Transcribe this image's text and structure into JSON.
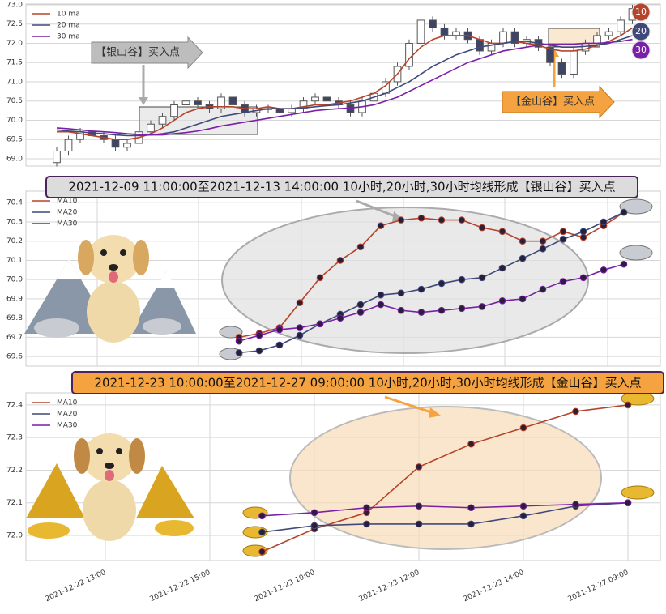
{
  "chart_data": [
    {
      "type": "candlestick",
      "annotations": [
        "【银山谷】买入点",
        "【金山谷】买入点"
      ],
      "badges": [
        "10",
        "20",
        "30"
      ],
      "ylim": [
        68.81,
        73.02
      ],
      "yticks": [
        {
          "value": 69,
          "label": "69.0"
        },
        69.5,
        {
          "value": 70,
          "label": "70.0"
        },
        70.5,
        {
          "value": 71,
          "label": "71.0"
        },
        71.5,
        {
          "value": 72,
          "label": "72.0"
        },
        72.5,
        {
          "value": 73,
          "label": "73.0"
        }
      ],
      "grid": true,
      "legend": "upper left",
      "up_color": "#ffffff",
      "down_color": "#3d4466",
      "open": [
        68.9,
        69.2,
        69.5,
        69.7,
        69.6,
        69.5,
        69.3,
        69.4,
        69.7,
        69.9,
        70.1,
        70.4,
        70.5,
        70.4,
        70.3,
        70.6,
        70.4,
        70.2,
        70.3,
        70.3,
        70.2,
        70.3,
        70.5,
        70.6,
        70.5,
        70.4,
        70.2,
        70.5,
        70.7,
        71.0,
        71.4,
        72.0,
        72.6,
        72.4,
        72.2,
        72.3,
        72.1,
        71.8,
        72.0,
        72.3,
        72.0,
        72.1,
        71.9,
        71.5,
        71.2,
        71.8,
        72.0,
        72.2,
        72.3,
        72.6
      ],
      "high": [
        69.3,
        69.6,
        69.8,
        69.8,
        69.7,
        69.6,
        69.5,
        69.8,
        70.0,
        70.2,
        70.5,
        70.6,
        70.6,
        70.5,
        70.7,
        70.7,
        70.5,
        70.4,
        70.4,
        70.4,
        70.4,
        70.6,
        70.7,
        70.7,
        70.6,
        70.5,
        70.6,
        70.8,
        71.1,
        71.5,
        72.1,
        72.7,
        72.7,
        72.5,
        72.4,
        72.4,
        72.2,
        72.1,
        72.4,
        72.4,
        72.2,
        72.2,
        72.0,
        71.6,
        71.9,
        72.1,
        72.3,
        72.4,
        72.7,
        73.0
      ],
      "low": [
        68.8,
        69.1,
        69.4,
        69.5,
        69.4,
        69.2,
        69.2,
        69.3,
        69.6,
        69.8,
        70.0,
        70.3,
        70.3,
        70.2,
        70.2,
        70.3,
        70.1,
        70.1,
        70.2,
        70.1,
        70.1,
        70.2,
        70.4,
        70.4,
        70.3,
        70.1,
        70.1,
        70.4,
        70.6,
        70.9,
        71.3,
        71.9,
        72.3,
        72.1,
        72.1,
        72.0,
        71.7,
        71.7,
        71.9,
        71.9,
        71.9,
        71.8,
        71.4,
        71.1,
        71.1,
        71.7,
        71.9,
        72.1,
        72.2,
        72.5
      ],
      "close": [
        69.2,
        69.5,
        69.7,
        69.6,
        69.5,
        69.3,
        69.4,
        69.7,
        69.9,
        70.1,
        70.4,
        70.5,
        70.4,
        70.3,
        70.6,
        70.4,
        70.2,
        70.3,
        70.3,
        70.2,
        70.3,
        70.5,
        70.6,
        70.5,
        70.4,
        70.2,
        70.5,
        70.7,
        71.0,
        71.4,
        72.0,
        72.6,
        72.4,
        72.2,
        72.3,
        72.1,
        71.8,
        72.0,
        72.3,
        72.0,
        72.1,
        71.9,
        71.5,
        71.2,
        71.8,
        72.0,
        72.2,
        72.3,
        72.6,
        72.9
      ],
      "series": [
        {
          "name": "10 ma",
          "color": "#b5442c",
          "values": [
            69.7,
            69.7,
            69.65,
            69.6,
            69.55,
            69.5,
            69.5,
            69.55,
            69.65,
            69.8,
            70.0,
            70.2,
            70.3,
            70.35,
            70.35,
            70.35,
            70.3,
            70.3,
            70.35,
            70.3,
            70.3,
            70.35,
            70.4,
            70.4,
            70.45,
            70.5,
            70.6,
            70.7,
            70.9,
            71.2,
            71.6,
            71.9,
            72.1,
            72.2,
            72.2,
            72.2,
            72.1,
            72.0,
            72.0,
            72.05,
            72.0,
            71.95,
            71.85,
            71.8,
            71.8,
            71.85,
            71.95,
            72.05,
            72.2,
            72.4
          ]
        },
        {
          "name": "20 ma",
          "color": "#3f4a7a",
          "values": [
            69.75,
            69.72,
            69.7,
            69.67,
            69.65,
            69.62,
            69.6,
            69.6,
            69.62,
            69.65,
            69.7,
            69.8,
            69.9,
            70.0,
            70.1,
            70.15,
            70.2,
            70.25,
            70.3,
            70.3,
            70.3,
            70.32,
            70.35,
            70.38,
            70.4,
            70.45,
            70.5,
            70.6,
            70.7,
            70.85,
            71.0,
            71.2,
            71.4,
            71.55,
            71.7,
            71.8,
            71.9,
            71.95,
            72.0,
            72.05,
            72.05,
            72.0,
            71.95,
            71.9,
            71.9,
            71.92,
            71.95,
            72.0,
            72.1,
            72.2
          ]
        },
        {
          "name": "30 ma",
          "color": "#7a1fa8",
          "values": [
            69.8,
            69.78,
            69.75,
            69.72,
            69.7,
            69.68,
            69.65,
            69.63,
            69.62,
            69.62,
            69.65,
            69.68,
            69.72,
            69.78,
            69.85,
            69.9,
            69.95,
            70.0,
            70.05,
            70.1,
            70.15,
            70.2,
            70.25,
            70.28,
            70.3,
            70.32,
            70.35,
            70.4,
            70.5,
            70.6,
            70.75,
            70.9,
            71.05,
            71.2,
            71.35,
            71.5,
            71.6,
            71.7,
            71.8,
            71.85,
            71.9,
            71.95,
            71.98,
            71.98,
            71.98,
            72.0,
            72.0,
            72.02,
            72.05,
            72.1
          ]
        }
      ]
    },
    {
      "type": "line",
      "title": "2021-12-09 11:00:00至2021-12-13 14:00:00 10小时,20小时,30小时均线形成【银山谷】买入点",
      "ylim": [
        69.55,
        70.46
      ],
      "yticks": [
        69.6,
        69.7,
        69.8,
        69.9,
        {
          "value": 70,
          "label": "70.0"
        },
        70.1,
        70.2,
        70.3,
        70.4
      ],
      "grid": true,
      "legend": "upper left",
      "markers": true,
      "series": [
        {
          "name": "MA10",
          "color": "#b5442c",
          "values": [
            69.7,
            69.72,
            69.75,
            69.88,
            70.01,
            70.1,
            70.17,
            70.28,
            70.31,
            70.32,
            70.31,
            70.31,
            70.27,
            70.25,
            70.2,
            70.2,
            70.25,
            70.22,
            70.28,
            70.35
          ]
        },
        {
          "name": "MA20",
          "color": "#3f4a7a",
          "values": [
            69.62,
            69.63,
            69.66,
            69.71,
            69.77,
            69.82,
            69.87,
            69.92,
            69.93,
            69.95,
            69.98,
            70.0,
            70.01,
            70.06,
            70.11,
            70.16,
            70.21,
            70.25,
            70.3,
            70.35
          ]
        },
        {
          "name": "MA30",
          "color": "#7a1fa8",
          "values": [
            69.68,
            69.71,
            69.74,
            69.75,
            69.77,
            69.8,
            69.83,
            69.87,
            69.84,
            69.83,
            69.84,
            69.85,
            69.86,
            69.89,
            69.9,
            69.95,
            69.99,
            70.01,
            70.05,
            70.08
          ]
        }
      ]
    },
    {
      "type": "line",
      "title": "2021-12-23 10:00:00至2021-12-27 09:00:00 10小时,20小时,30小时均线形成【金山谷】买入点",
      "categories": [
        "2021-12-22 13:00",
        null,
        "2021-12-22 15:00",
        null,
        "2021-12-23 10:00",
        null,
        "2021-12-23 12:00",
        null,
        "2021-12-23 14:00",
        null,
        "2021-12-27 09:00"
      ],
      "ylim": [
        71.923,
        72.437
      ],
      "yticks": [
        {
          "value": 72,
          "label": "72.0"
        },
        72.1,
        72.2,
        72.3,
        72.4
      ],
      "grid": true,
      "legend": "upper left",
      "markers": true,
      "series": [
        {
          "name": "MA10",
          "color": "#b5442c",
          "values": [
            null,
            null,
            null,
            71.95,
            72.02,
            72.07,
            72.21,
            72.28,
            72.33,
            72.38,
            72.4
          ]
        },
        {
          "name": "MA20",
          "color": "#3f4a7a",
          "values": [
            null,
            null,
            null,
            72.01,
            72.03,
            72.035,
            72.035,
            72.035,
            72.06,
            72.09,
            72.1
          ]
        },
        {
          "name": "MA30",
          "color": "#7a1fa8",
          "values": [
            null,
            null,
            null,
            72.06,
            72.07,
            72.085,
            72.09,
            72.085,
            72.09,
            72.095,
            72.1
          ]
        }
      ]
    }
  ]
}
